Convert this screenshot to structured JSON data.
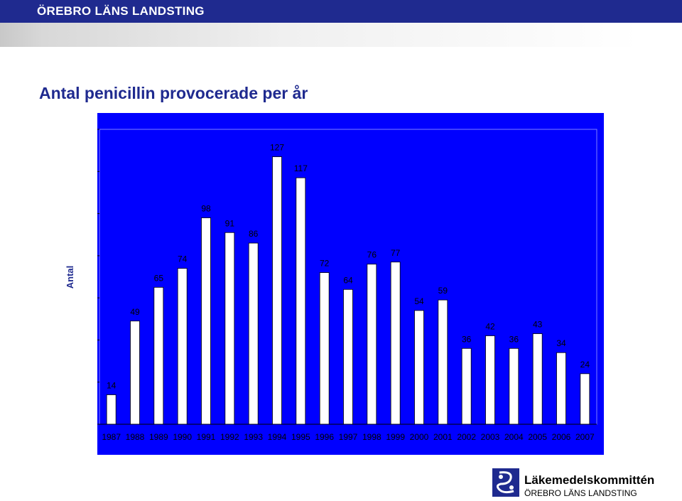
{
  "header": {
    "org": "ÖREBRO LÄNS LANDSTING"
  },
  "title": "Antal penicillin provocerade per år",
  "chart_data": {
    "type": "bar",
    "ylabel": "Antal",
    "xlabel": "",
    "ylim": [
      0,
      140
    ],
    "yticks": [
      0,
      20,
      40,
      60,
      80,
      100,
      120,
      140
    ],
    "categories": [
      "1987",
      "1988",
      "1989",
      "1990",
      "1991",
      "1992",
      "1993",
      "1994",
      "1995",
      "1996",
      "1997",
      "1998",
      "1999",
      "2000",
      "2001",
      "2002",
      "2003",
      "2004",
      "2005",
      "2006",
      "2007"
    ],
    "values": [
      14,
      49,
      65,
      74,
      98,
      91,
      86,
      127,
      117,
      72,
      64,
      76,
      77,
      54,
      59,
      36,
      42,
      36,
      43,
      34,
      24
    ],
    "data_labels": true,
    "grid": false,
    "legend": "none",
    "colors": {
      "background": "#0000ff",
      "plot_area": "#0000ff",
      "bar": "#ffffff",
      "text": "#000000"
    }
  },
  "footer": {
    "name": "Läkemedelskommittén",
    "org": "ÖREBRO LÄNS LANDSTING"
  }
}
